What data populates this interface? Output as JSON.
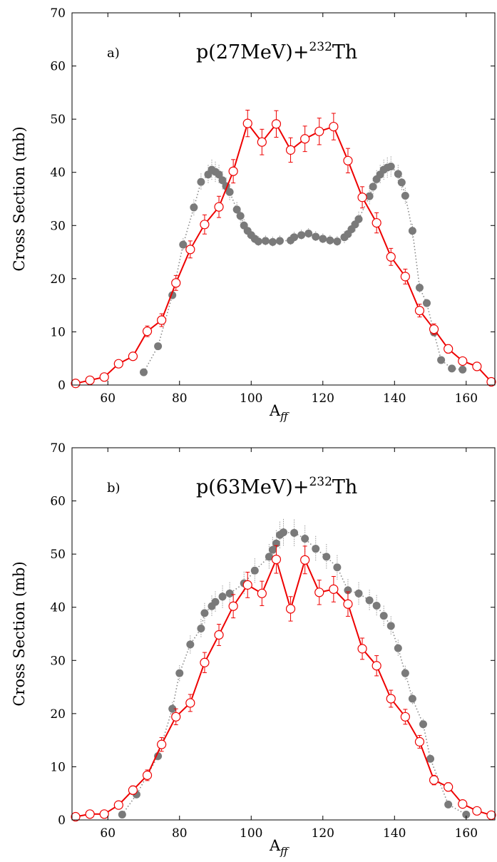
{
  "chart_data": [
    {
      "type": "scatter",
      "panel_label": "a)",
      "title_base": "p(27MeV)+",
      "title_sup": "232",
      "title_tail": "Th",
      "xlabel_base": "A",
      "xlabel_sub": "ff",
      "ylabel": "Cross Section (mb)",
      "xlim": [
        50,
        168
      ],
      "ylim": [
        0,
        70
      ],
      "xticks": [
        "60",
        "80",
        "100",
        "120",
        "140",
        "160"
      ],
      "yticks": [
        "0",
        "10",
        "20",
        "30",
        "40",
        "50",
        "60",
        "70"
      ],
      "xtick_values": [
        60,
        80,
        100,
        120,
        140,
        160
      ],
      "ytick_values": [
        0,
        10,
        20,
        30,
        40,
        50,
        60,
        70
      ],
      "grid": false,
      "series": [
        {
          "style": "filled-gray-dotted",
          "color": "#7a7a7a",
          "x": [
            70,
            74,
            78,
            81,
            84,
            86,
            88,
            89,
            90,
            91,
            92,
            93,
            94,
            96,
            97,
            98,
            99,
            100,
            101,
            102,
            104,
            106,
            108,
            111,
            112,
            114,
            116,
            118,
            120,
            122,
            124,
            126,
            127,
            128,
            129,
            130,
            133,
            134,
            135,
            136,
            137,
            138,
            139,
            141,
            142,
            143,
            145,
            147,
            149,
            151,
            153,
            156,
            159
          ],
          "y": [
            2.4,
            7.3,
            16.9,
            26.4,
            33.4,
            38.2,
            39.6,
            40.5,
            40.1,
            39.6,
            38.5,
            37.4,
            36.3,
            33.0,
            31.8,
            30.0,
            29.0,
            28.2,
            27.5,
            27.0,
            27.1,
            26.9,
            27.1,
            27.2,
            27.8,
            28.2,
            28.5,
            27.9,
            27.5,
            27.2,
            27.0,
            27.8,
            28.4,
            29.3,
            30.2,
            31.2,
            35.5,
            37.3,
            38.7,
            39.6,
            40.5,
            40.9,
            41.1,
            39.7,
            38.1,
            35.6,
            29.0,
            18.3,
            15.4,
            9.9,
            4.7,
            3.1,
            2.9
          ],
          "err": [
            0.3,
            0.5,
            0.8,
            1.2,
            1.5,
            1.6,
            1.8,
            1.9,
            1.9,
            1.8,
            1.7,
            1.6,
            1.5,
            1.4,
            1.3,
            1.2,
            1.1,
            1.0,
            1.0,
            1.0,
            1.0,
            1.0,
            1.0,
            1.0,
            1.0,
            1.0,
            1.0,
            1.0,
            1.0,
            1.0,
            1.0,
            1.1,
            1.1,
            1.2,
            1.3,
            1.4,
            1.5,
            1.6,
            1.7,
            1.8,
            1.9,
            1.9,
            1.9,
            1.7,
            1.6,
            1.5,
            1.3,
            0.9,
            0.8,
            0.6,
            0.4,
            0.3,
            0.3
          ]
        },
        {
          "style": "open-red-solid",
          "color": "#ee0000",
          "x": [
            51,
            55,
            59,
            63,
            67,
            71,
            75,
            79,
            83,
            87,
            91,
            95,
            99,
            103,
            107,
            111,
            115,
            119,
            123,
            127,
            131,
            135,
            139,
            143,
            147,
            151,
            155,
            159,
            163,
            167
          ],
          "y": [
            0.3,
            0.9,
            1.5,
            4.0,
            5.4,
            10.1,
            12.2,
            19.2,
            25.5,
            30.2,
            33.5,
            40.2,
            49.2,
            45.7,
            49.1,
            44.2,
            46.3,
            47.7,
            48.6,
            42.2,
            35.3,
            30.5,
            24.1,
            20.4,
            14.0,
            10.5,
            6.8,
            4.5,
            3.5,
            0.6
          ],
          "err": [
            0.1,
            0.2,
            0.3,
            0.6,
            0.7,
            1.0,
            1.2,
            1.4,
            1.6,
            1.8,
            2.0,
            2.2,
            2.5,
            2.4,
            2.5,
            2.3,
            2.4,
            2.5,
            2.5,
            2.3,
            2.0,
            1.9,
            1.6,
            1.4,
            1.2,
            1.0,
            0.8,
            0.6,
            0.5,
            0.2
          ]
        }
      ]
    },
    {
      "type": "scatter",
      "panel_label": "b)",
      "title_base": "p(63MeV)+",
      "title_sup": "232",
      "title_tail": "Th",
      "xlabel_base": "A",
      "xlabel_sub": "ff",
      "ylabel": "Cross Section (mb)",
      "xlim": [
        50,
        168
      ],
      "ylim": [
        0,
        70
      ],
      "xticks": [
        "60",
        "80",
        "100",
        "120",
        "140",
        "160"
      ],
      "yticks": [
        "0",
        "10",
        "20",
        "30",
        "40",
        "50",
        "60",
        "70"
      ],
      "xtick_values": [
        60,
        80,
        100,
        120,
        140,
        160
      ],
      "ytick_values": [
        0,
        10,
        20,
        30,
        40,
        50,
        60,
        70
      ],
      "grid": false,
      "series": [
        {
          "style": "filled-gray-dotted",
          "color": "#7a7a7a",
          "x": [
            64,
            68,
            74,
            78,
            80,
            83,
            86,
            87,
            89,
            90,
            92,
            94,
            98,
            101,
            105,
            106,
            107,
            108,
            109,
            112,
            115,
            118,
            121,
            124,
            127,
            130,
            133,
            135,
            137,
            139,
            141,
            143,
            145,
            148,
            150,
            155,
            160
          ],
          "y": [
            1.0,
            4.8,
            12.0,
            20.9,
            27.6,
            33.0,
            36.0,
            38.9,
            40.2,
            41.0,
            42.0,
            42.6,
            44.5,
            46.9,
            49.5,
            50.8,
            52.0,
            53.6,
            54.1,
            54.0,
            52.9,
            51.0,
            49.5,
            47.5,
            43.2,
            42.6,
            41.3,
            40.3,
            38.4,
            36.5,
            32.3,
            27.6,
            22.8,
            18.0,
            11.5,
            2.9,
            1.0
          ],
          "err": [
            0.3,
            0.6,
            1.0,
            1.3,
            1.5,
            1.7,
            1.8,
            1.9,
            2.0,
            2.0,
            2.1,
            2.1,
            2.2,
            2.3,
            2.4,
            2.4,
            2.5,
            2.5,
            2.5,
            2.5,
            2.5,
            2.4,
            2.4,
            2.3,
            2.1,
            2.1,
            2.0,
            2.0,
            1.9,
            1.8,
            1.6,
            1.4,
            1.2,
            1.0,
            0.8,
            0.3,
            0.2
          ]
        },
        {
          "style": "open-red-solid",
          "color": "#ee0000",
          "x": [
            51,
            55,
            59,
            63,
            67,
            71,
            75,
            79,
            83,
            87,
            91,
            95,
            99,
            103,
            107,
            111,
            115,
            119,
            123,
            127,
            131,
            135,
            139,
            143,
            147,
            151,
            155,
            159,
            163,
            167
          ],
          "y": [
            0.6,
            1.1,
            1.1,
            2.8,
            5.6,
            8.4,
            14.2,
            19.4,
            22.0,
            29.6,
            34.8,
            40.2,
            44.2,
            42.6,
            49.0,
            39.7,
            48.9,
            42.8,
            43.4,
            40.6,
            32.2,
            29.0,
            22.8,
            19.4,
            14.7,
            7.5,
            6.2,
            3.0,
            1.7,
            0.9
          ],
          "err": [
            0.1,
            0.2,
            0.2,
            0.5,
            0.8,
            1.0,
            1.3,
            1.5,
            1.6,
            1.9,
            2.0,
            2.2,
            2.4,
            2.3,
            2.6,
            2.3,
            2.6,
            2.3,
            2.4,
            2.3,
            2.0,
            1.9,
            1.6,
            1.4,
            1.2,
            0.9,
            0.8,
            0.5,
            0.3,
            0.2
          ]
        }
      ]
    }
  ]
}
